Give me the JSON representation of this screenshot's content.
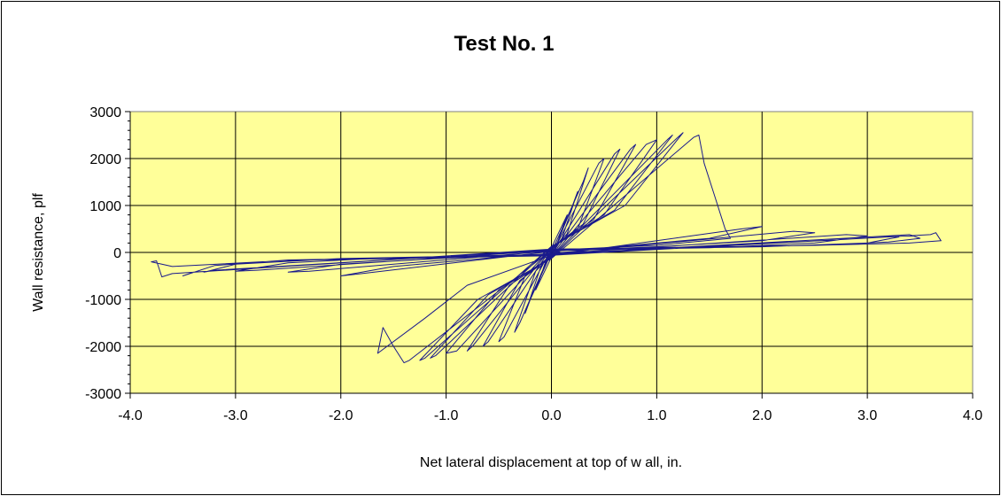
{
  "chart_data": {
    "type": "line",
    "title": "Test No. 1",
    "xlabel": "Net lateral displacement at top of w all, in.",
    "ylabel": "Wall resistance, plf",
    "xlim": [
      -4.0,
      4.0
    ],
    "ylim": [
      -3000,
      3000
    ],
    "x_ticks": [
      "-4.0",
      "-3.0",
      "-2.0",
      "-1.0",
      "0.0",
      "1.0",
      "2.0",
      "3.0",
      "4.0"
    ],
    "y_ticks": [
      "-3000",
      "-2000",
      "-1000",
      "0",
      "1000",
      "2000",
      "3000"
    ],
    "grid": true,
    "legend": "none",
    "colors": {
      "plot_background": "#ffff99",
      "series_line": "#1a1a8c",
      "grid": "#000000"
    },
    "series": [
      {
        "values_note_free": true,
        "points": [
          [
            0.0,
            0
          ],
          [
            0.05,
            150
          ],
          [
            0.1,
            500
          ],
          [
            0.15,
            800
          ],
          [
            0.0,
            100
          ],
          [
            -0.05,
            -150
          ],
          [
            -0.1,
            -500
          ],
          [
            -0.15,
            -800
          ],
          [
            0.0,
            -100
          ],
          [
            0.2,
            1000
          ],
          [
            0.25,
            1300
          ],
          [
            0.1,
            300
          ],
          [
            0.0,
            0
          ],
          [
            -0.2,
            -1000
          ],
          [
            -0.25,
            -1300
          ],
          [
            -0.1,
            -300
          ],
          [
            0.0,
            0
          ],
          [
            0.3,
            1500
          ],
          [
            0.35,
            1800
          ],
          [
            0.15,
            400
          ],
          [
            0.0,
            50
          ],
          [
            -0.3,
            -1500
          ],
          [
            -0.35,
            -1700
          ],
          [
            -0.15,
            -400
          ],
          [
            0.0,
            -50
          ],
          [
            0.45,
            1900
          ],
          [
            0.5,
            2000
          ],
          [
            0.25,
            500
          ],
          [
            0.0,
            80
          ],
          [
            -0.45,
            -1800
          ],
          [
            -0.5,
            -1900
          ],
          [
            -0.25,
            -500
          ],
          [
            0.0,
            -60
          ],
          [
            0.6,
            2100
          ],
          [
            0.65,
            2200
          ],
          [
            0.3,
            600
          ],
          [
            0.0,
            100
          ],
          [
            -0.6,
            -1900
          ],
          [
            -0.65,
            -2000
          ],
          [
            -0.3,
            -600
          ],
          [
            0.0,
            -80
          ],
          [
            0.75,
            2200
          ],
          [
            0.8,
            2300
          ],
          [
            0.4,
            700
          ],
          [
            0.0,
            100
          ],
          [
            -0.75,
            -2000
          ],
          [
            -0.8,
            -2100
          ],
          [
            -0.4,
            -700
          ],
          [
            0.0,
            -100
          ],
          [
            0.9,
            2300
          ],
          [
            1.0,
            2400
          ],
          [
            0.5,
            800
          ],
          [
            0.0,
            100
          ],
          [
            -0.9,
            -2100
          ],
          [
            -1.0,
            -2150
          ],
          [
            -0.5,
            -800
          ],
          [
            0.0,
            -100
          ],
          [
            1.1,
            2400
          ],
          [
            1.15,
            2500
          ],
          [
            0.6,
            900
          ],
          [
            0.0,
            120
          ],
          [
            -1.1,
            -2200
          ],
          [
            -1.15,
            -2250
          ],
          [
            -0.6,
            -900
          ],
          [
            0.0,
            -120
          ],
          [
            1.2,
            2450
          ],
          [
            1.25,
            2550
          ],
          [
            0.7,
            1000
          ],
          [
            0.0,
            130
          ],
          [
            -1.2,
            -2250
          ],
          [
            -1.25,
            -2300
          ],
          [
            -0.7,
            -1000
          ],
          [
            0.0,
            -130
          ],
          [
            1.35,
            2450
          ],
          [
            1.4,
            2500
          ],
          [
            1.45,
            1900
          ],
          [
            1.55,
            1200
          ],
          [
            1.65,
            500
          ],
          [
            1.7,
            300
          ],
          [
            1.0,
            150
          ],
          [
            0.0,
            50
          ],
          [
            -1.35,
            -2300
          ],
          [
            -1.4,
            -2350
          ],
          [
            -1.5,
            -2000
          ],
          [
            -1.6,
            -1600
          ],
          [
            -1.65,
            -2150
          ],
          [
            -1.2,
            -1400
          ],
          [
            -0.8,
            -700
          ],
          [
            0.0,
            -60
          ],
          [
            1.8,
            500
          ],
          [
            2.0,
            550
          ],
          [
            1.5,
            300
          ],
          [
            0.5,
            100
          ],
          [
            0.0,
            20
          ],
          [
            -1.8,
            -450
          ],
          [
            -2.0,
            -500
          ],
          [
            -1.5,
            -300
          ],
          [
            -0.5,
            -100
          ],
          [
            0.0,
            -20
          ],
          [
            2.3,
            450
          ],
          [
            2.5,
            420
          ],
          [
            2.0,
            250
          ],
          [
            1.0,
            120
          ],
          [
            0.0,
            30
          ],
          [
            -2.3,
            -400
          ],
          [
            -2.5,
            -420
          ],
          [
            -2.0,
            -250
          ],
          [
            -1.0,
            -120
          ],
          [
            0.0,
            -30
          ],
          [
            2.8,
            380
          ],
          [
            3.0,
            350
          ],
          [
            2.5,
            200
          ],
          [
            1.5,
            100
          ],
          [
            0.0,
            40
          ],
          [
            -2.8,
            -380
          ],
          [
            -3.0,
            -400
          ],
          [
            -2.5,
            -220
          ],
          [
            -1.5,
            -110
          ],
          [
            0.0,
            -40
          ],
          [
            3.2,
            350
          ],
          [
            3.3,
            330
          ],
          [
            3.0,
            200
          ],
          [
            2.0,
            120
          ],
          [
            0.0,
            50
          ],
          [
            -3.2,
            -380
          ],
          [
            -3.3,
            -420
          ],
          [
            -3.0,
            -250
          ],
          [
            -2.0,
            -130
          ],
          [
            0.0,
            -50
          ],
          [
            3.4,
            380
          ],
          [
            3.5,
            300
          ],
          [
            3.2,
            220
          ],
          [
            2.5,
            150
          ],
          [
            0.0,
            60
          ],
          [
            -3.4,
            -420
          ],
          [
            -3.5,
            -500
          ],
          [
            -3.2,
            -280
          ],
          [
            -2.5,
            -160
          ],
          [
            0.0,
            -60
          ],
          [
            3.6,
            380
          ],
          [
            3.65,
            420
          ],
          [
            3.7,
            250
          ],
          [
            3.4,
            200
          ],
          [
            2.5,
            150
          ],
          [
            0.0,
            70
          ],
          [
            -3.6,
            -450
          ],
          [
            -3.7,
            -520
          ],
          [
            -3.75,
            -180
          ],
          [
            -3.8,
            -200
          ],
          [
            -3.6,
            -300
          ],
          [
            -2.5,
            -170
          ],
          [
            0.0,
            -70
          ]
        ]
      }
    ]
  }
}
